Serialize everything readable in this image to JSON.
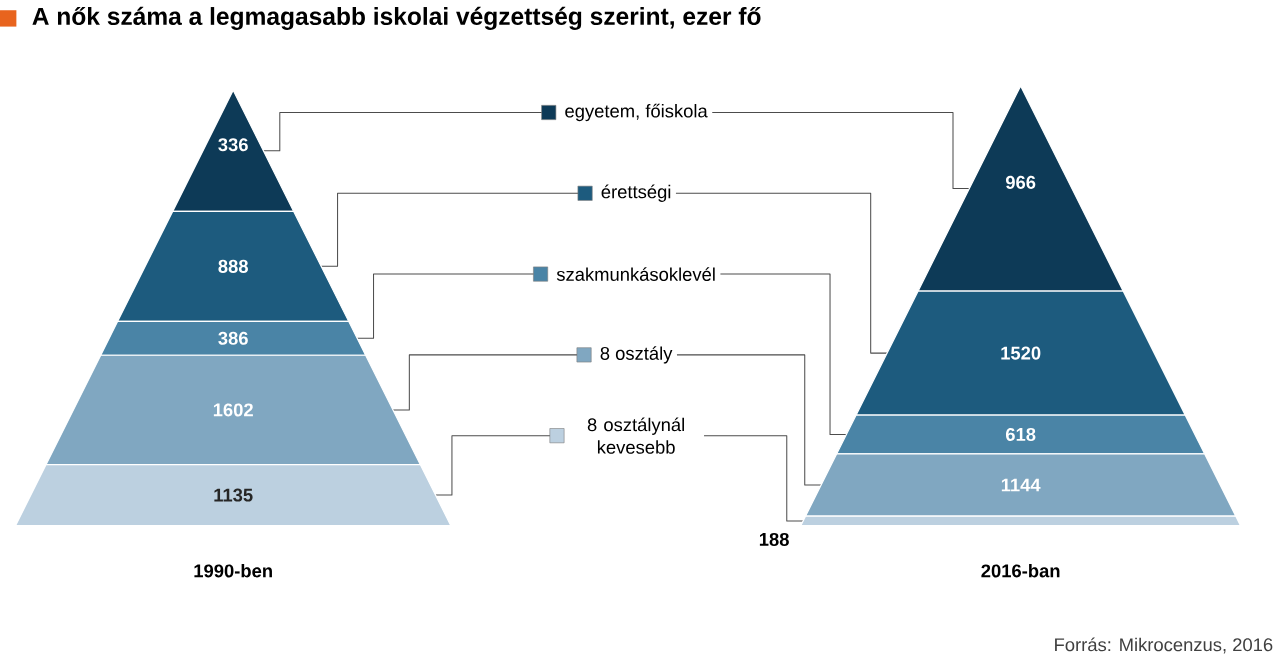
{
  "chart_data": {
    "type": "other",
    "title": "A nők száma a legmagasabb iskolai végzettség szerint, ezer fő",
    "categories": [
      "1990-ben",
      "2016-ban"
    ],
    "series": [
      {
        "name": "egyetem, főiskola",
        "color": "#0d3a57",
        "values": [
          336,
          966
        ]
      },
      {
        "name": "érettségi",
        "color": "#1d5b7e",
        "values": [
          888,
          1520
        ]
      },
      {
        "name": "szakmunkásoklevél",
        "color": "#4a84a6",
        "values": [
          386,
          618
        ]
      },
      {
        "name": "8 osztály",
        "color": "#80a7c1",
        "values": [
          1602,
          1144
        ]
      },
      {
        "name": "8 osztálynál kevesebb",
        "color": "#bcd0e0",
        "values": [
          1135,
          188
        ]
      }
    ],
    "data_labels": true,
    "legend": "center",
    "annotations": [
      "Forrás: Mikrocenzus, 2016"
    ]
  }
}
